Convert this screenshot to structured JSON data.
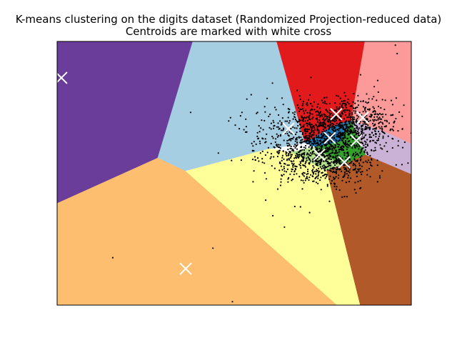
{
  "chart_data": {
    "type": "scatter",
    "title_lines": [
      "K-means clustering on the digits dataset (Randomized Projection-reduced data)",
      "Centroids are marked with white cross"
    ],
    "xlabel": "",
    "ylabel": "",
    "xlim": [
      0,
      1
    ],
    "ylim": [
      0,
      1
    ],
    "ticks": "hidden",
    "grid": false,
    "legend": "none",
    "centroid_marker": "white cross",
    "centroids": [
      {
        "x": 0.012,
        "y": 0.862
      },
      {
        "x": 0.363,
        "y": 0.138
      },
      {
        "x": 0.653,
        "y": 0.669
      },
      {
        "x": 0.788,
        "y": 0.724
      },
      {
        "x": 0.863,
        "y": 0.711
      },
      {
        "x": 0.77,
        "y": 0.634
      },
      {
        "x": 0.845,
        "y": 0.624
      },
      {
        "x": 0.74,
        "y": 0.57
      },
      {
        "x": 0.811,
        "y": 0.542
      }
    ],
    "sparse_points": [
      [
        0.157,
        0.18
      ],
      [
        0.44,
        0.216
      ],
      [
        0.495,
        0.013
      ],
      [
        0.377,
        0.731
      ],
      [
        0.563,
        0.727
      ],
      [
        0.608,
        0.842
      ],
      [
        0.593,
        0.784
      ],
      [
        0.548,
        0.798
      ],
      [
        0.615,
        0.75
      ],
      [
        0.522,
        0.731
      ],
      [
        0.57,
        0.68
      ],
      [
        0.609,
        0.339
      ],
      [
        0.671,
        0.374
      ],
      [
        0.642,
        0.296
      ],
      [
        0.623,
        0.44
      ],
      [
        0.589,
        0.398
      ],
      [
        0.713,
        0.351
      ],
      [
        0.955,
        0.986
      ],
      [
        0.96,
        0.954
      ],
      [
        0.573,
        0.613
      ],
      [
        0.602,
        0.556
      ],
      [
        0.632,
        0.467
      ]
    ],
    "dense_clusters": [
      {
        "center": [
          0.78,
          0.655
        ],
        "spread": [
          0.075,
          0.06
        ],
        "count": 900
      },
      {
        "center": [
          0.72,
          0.56
        ],
        "spread": [
          0.06,
          0.045
        ],
        "count": 320
      },
      {
        "center": [
          0.85,
          0.69
        ],
        "spread": [
          0.055,
          0.05
        ],
        "count": 260
      },
      {
        "center": [
          0.79,
          0.52
        ],
        "spread": [
          0.05,
          0.045
        ],
        "count": 220
      },
      {
        "center": [
          0.66,
          0.62
        ],
        "spread": [
          0.08,
          0.065
        ],
        "count": 180
      }
    ],
    "regions": [
      {
        "color": "#6a3d9a",
        "polygon": [
          [
            0.0,
            1.0
          ],
          [
            0.383,
            1.0
          ],
          [
            0.284,
            0.558
          ],
          [
            0.0,
            0.386
          ]
        ]
      },
      {
        "color": "#a6cee3",
        "polygon": [
          [
            0.383,
            1.0
          ],
          [
            0.62,
            1.0
          ],
          [
            0.7,
            0.615
          ],
          [
            0.6,
            0.593
          ],
          [
            0.362,
            0.508
          ],
          [
            0.284,
            0.558
          ]
        ]
      },
      {
        "color": "#e31a1c",
        "polygon": [
          [
            0.62,
            1.0
          ],
          [
            0.869,
            1.0
          ],
          [
            0.83,
            0.7
          ],
          [
            0.78,
            0.68
          ],
          [
            0.7,
            0.615
          ]
        ]
      },
      {
        "color": "#fb9a99",
        "polygon": [
          [
            0.869,
            1.0
          ],
          [
            1.0,
            1.0
          ],
          [
            1.0,
            0.612
          ],
          [
            0.92,
            0.66
          ],
          [
            0.83,
            0.7
          ]
        ]
      },
      {
        "color": "#cab2d6",
        "polygon": [
          [
            0.83,
            0.7
          ],
          [
            0.92,
            0.66
          ],
          [
            1.0,
            0.612
          ],
          [
            1.0,
            0.496
          ],
          [
            0.87,
            0.57
          ]
        ]
      },
      {
        "color": "#b15928",
        "polygon": [
          [
            0.8,
            0.53
          ],
          [
            0.87,
            0.57
          ],
          [
            1.0,
            0.496
          ],
          [
            1.0,
            0.0
          ],
          [
            0.855,
            0.0
          ],
          [
            0.76,
            0.51
          ]
        ]
      },
      {
        "color": "#ffff99",
        "polygon": [
          [
            0.362,
            0.508
          ],
          [
            0.6,
            0.593
          ],
          [
            0.66,
            0.58
          ],
          [
            0.76,
            0.51
          ],
          [
            0.855,
            0.0
          ],
          [
            0.79,
            0.0
          ]
        ]
      },
      {
        "color": "#fdbf6f",
        "polygon": [
          [
            0.0,
            0.386
          ],
          [
            0.284,
            0.558
          ],
          [
            0.362,
            0.508
          ],
          [
            0.79,
            0.0
          ],
          [
            0.0,
            0.0
          ]
        ]
      },
      {
        "color": "#1f78b4",
        "polygon": [
          [
            0.7,
            0.615
          ],
          [
            0.78,
            0.68
          ],
          [
            0.83,
            0.7
          ],
          [
            0.8,
            0.62
          ],
          [
            0.73,
            0.6
          ]
        ]
      },
      {
        "color": "#33a02c",
        "polygon": [
          [
            0.73,
            0.6
          ],
          [
            0.8,
            0.62
          ],
          [
            0.83,
            0.7
          ],
          [
            0.87,
            0.57
          ],
          [
            0.8,
            0.53
          ]
        ]
      },
      {
        "color": "#b2df8a",
        "polygon": [
          [
            0.66,
            0.58
          ],
          [
            0.73,
            0.6
          ],
          [
            0.8,
            0.53
          ],
          [
            0.76,
            0.51
          ]
        ]
      }
    ]
  }
}
